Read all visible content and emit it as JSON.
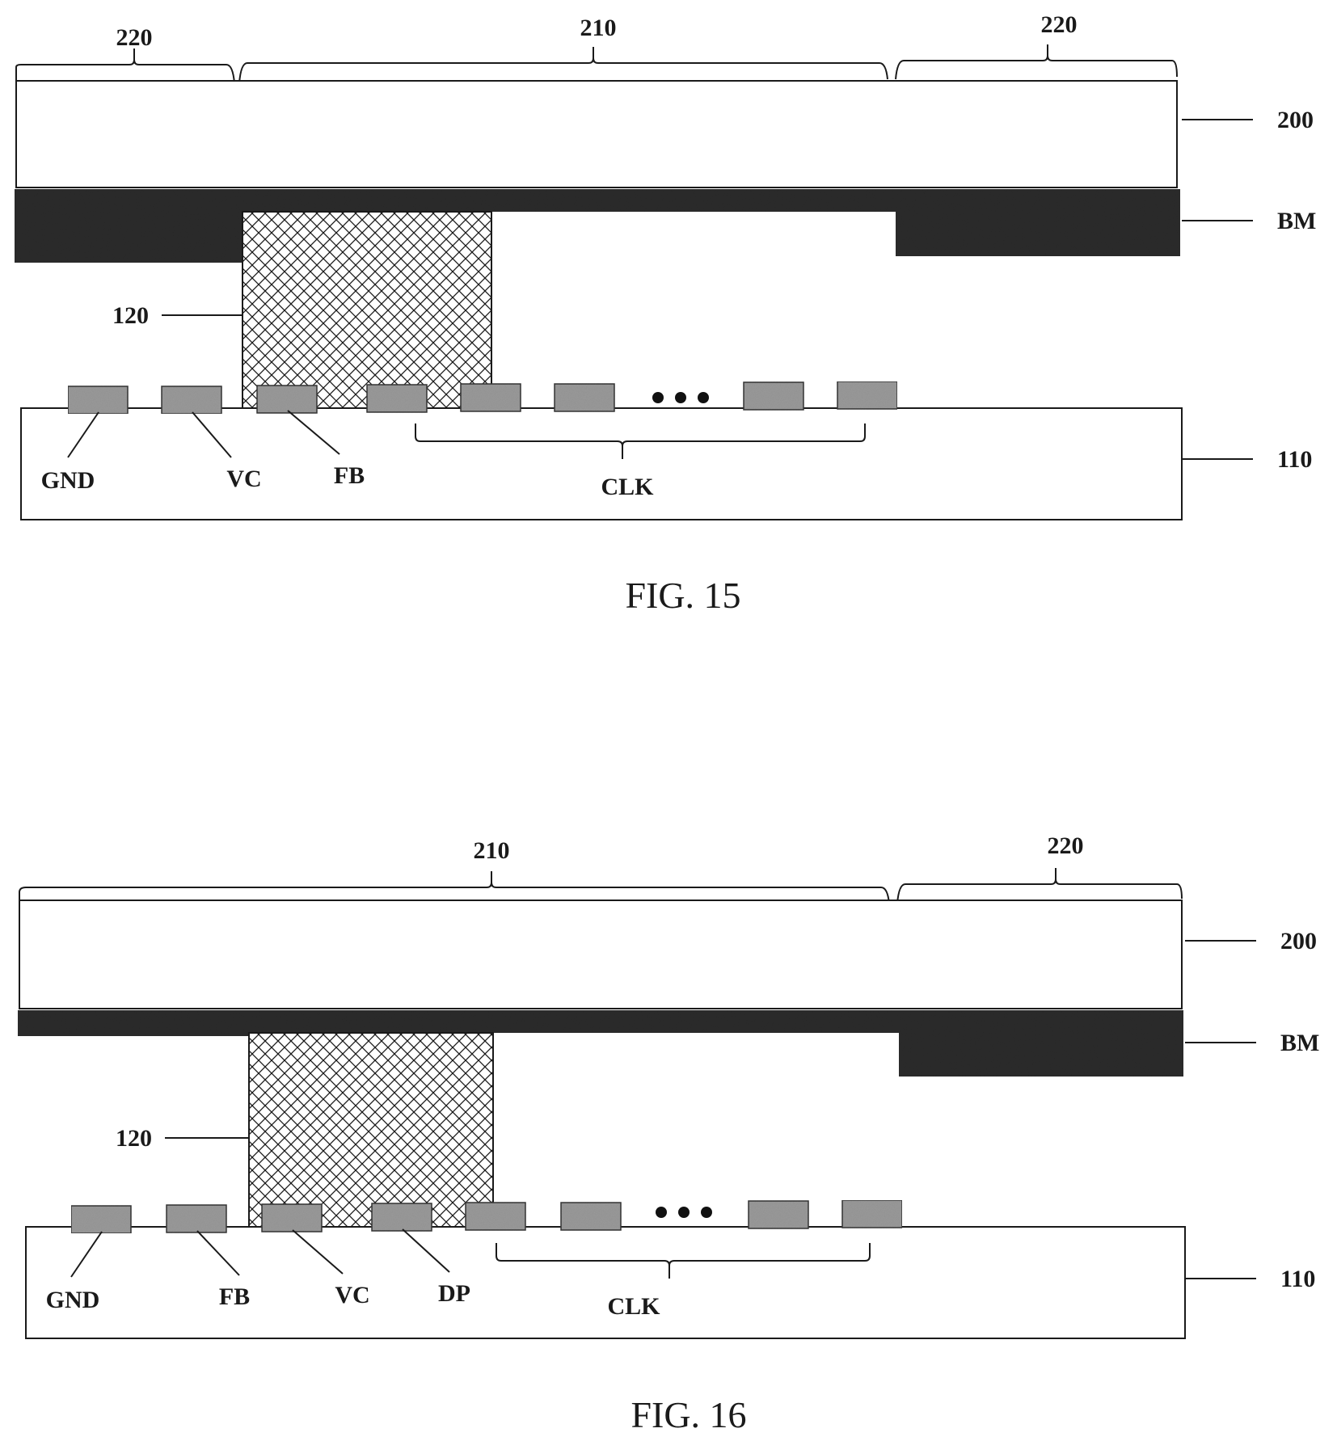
{
  "figures": [
    {
      "caption": "FIG. 15",
      "brace_labels": [
        "220",
        "210",
        "220"
      ],
      "layer_labels": {
        "substrate_top": "200",
        "black_matrix": "BM",
        "spacer": "120",
        "substrate_bottom": "110"
      },
      "pad_labels": [
        "GND",
        "VC",
        "FB"
      ],
      "group_label": "CLK"
    },
    {
      "caption": "FIG. 16",
      "brace_labels": [
        "210",
        "220"
      ],
      "layer_labels": {
        "substrate_top": "200",
        "black_matrix": "BM",
        "spacer": "120",
        "substrate_bottom": "110"
      },
      "pad_labels": [
        "GND",
        "FB",
        "VC",
        "DP"
      ],
      "group_label": "CLK"
    }
  ],
  "colors": {
    "black_matrix": "#2b2b2b",
    "pad": "#9a9a9a",
    "line": "#1a1a1a"
  }
}
